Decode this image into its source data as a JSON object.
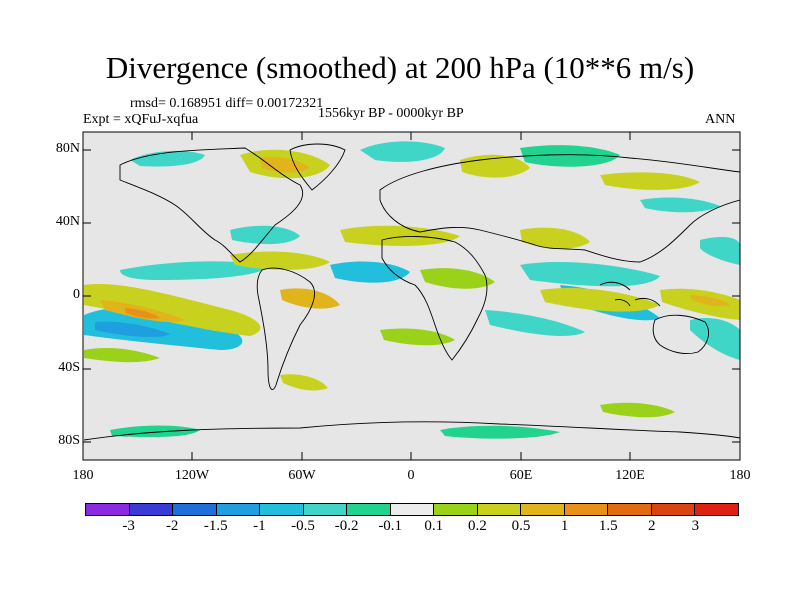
{
  "title": "Divergence (smoothed) at 200 hPa (10**6 m/s)",
  "stats": "rmsd= 0.168951 diff= 0.00172321",
  "experiment": "Expt = xQFuJ-xqfua",
  "period": "1556kyr BP - 0000kyr BP",
  "season": "ANN",
  "colors": {
    "background_field": "#e6e6e6",
    "coast": "#000000"
  },
  "map_data": {
    "projection": "cylindrical-equidistant",
    "lon_range": [
      -180,
      180
    ],
    "lat_range": [
      -90,
      90
    ],
    "lat_ticks": [
      "80N",
      "40N",
      "0",
      "40S",
      "80S"
    ],
    "lon_ticks": [
      "180",
      "120W",
      "60W",
      "0",
      "60E",
      "120E",
      "180"
    ]
  },
  "colorbar": {
    "labels": [
      "-3",
      "-2",
      "-1.5",
      "-1",
      "-0.5",
      "-0.2",
      "-0.1",
      "0.1",
      "0.2",
      "0.5",
      "1",
      "1.5",
      "2",
      "3"
    ],
    "colors": [
      "#8a2be2",
      "#3a3ad6",
      "#1e6fd9",
      "#1f9ee0",
      "#22bfdc",
      "#3fd6c8",
      "#22d38f",
      "#ececec",
      "#9ad21a",
      "#c8d21e",
      "#e0b41a",
      "#e89018",
      "#e26a12",
      "#d94412",
      "#e02010"
    ]
  }
}
